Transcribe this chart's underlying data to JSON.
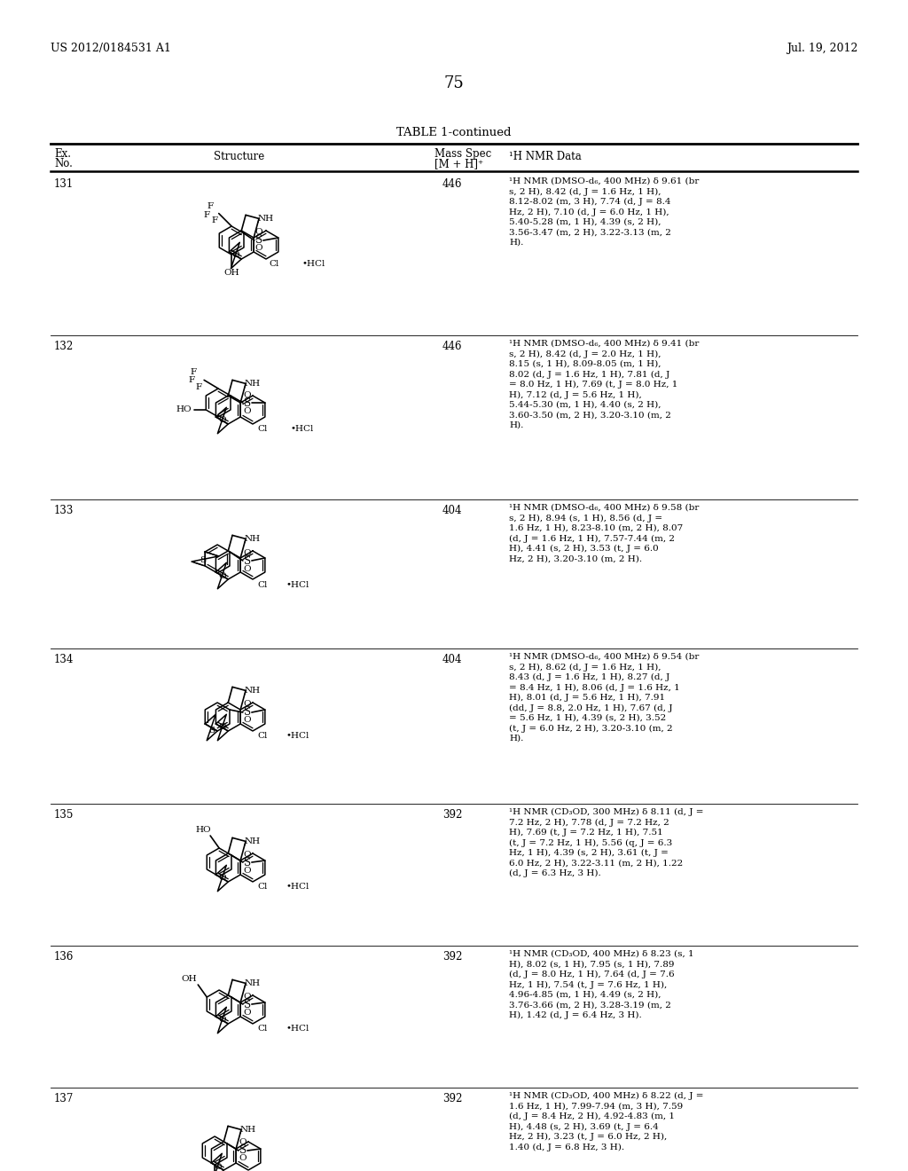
{
  "page_number": "75",
  "header_left": "US 2012/0184531 A1",
  "header_right": "Jul. 19, 2012",
  "table_title": "TABLE 1-continued",
  "background_color": "#ffffff",
  "rows": [
    {
      "ex_no": "131",
      "mass_spec": "446",
      "nmr": "¹H NMR (DMSO-d₆, 400 MHz) δ 9.61 (br s, 2 H), 8.42 (d, J = 1.6 Hz, 1 H), 8.12-8.02 (m, 3 H), 7.74 (d, J = 8.4 Hz, 2 H), 7.10 (d, J = 6.0 Hz, 1 H), 5.40-5.28 (m, 1 H), 4.39 (s, 2 H), 3.56-3.47 (m, 2 H), 3.22-3.13 (m, 2 H)."
    },
    {
      "ex_no": "132",
      "mass_spec": "446",
      "nmr": "¹H NMR (DMSO-d₆, 400 MHz) δ 9.41 (br s, 2 H), 8.42 (d, J = 2.0 Hz, 1 H), 8.15 (s, 1 H), 8.09-8.05 (m, 1 H), 8.02 (d, J = 1.6 Hz, 1 H), 7.81 (d, J = 8.0 Hz, 1 H), 7.69 (t, J = 8.0 Hz, 1 H), 7.12 (d, J = 5.6 Hz, 1 H), 5.44-5.30 (m, 1 H), 4.40 (s, 2 H), 3.60-3.50 (m, 2 H), 3.20-3.10 (m, 2 H)."
    },
    {
      "ex_no": "133",
      "mass_spec": "404",
      "nmr": "¹H NMR (DMSO-d₆, 400 MHz) δ 9.58 (br s, 2 H), 8.94 (s, 1 H), 8.56 (d, J = 1.6 Hz, 1 H), 8.23-8.10 (m, 2 H), 8.07 (d, J = 1.6 Hz, 1 H), 7.57-7.44 (m, 2 H), 4.41 (s, 2 H), 3.53 (t, J = 6.0 Hz, 2 H), 3.20-3.10 (m, 2 H)."
    },
    {
      "ex_no": "134",
      "mass_spec": "404",
      "nmr": "¹H NMR (DMSO-d₆, 400 MHz) δ 9.54 (br s, 2 H), 8.62 (d, J = 1.6 Hz, 1 H), 8.43 (d, J = 1.6 Hz, 1 H), 8.27 (d, J = 8.4 Hz, 1 H), 8.06 (d, J = 1.6 Hz, 1 H), 8.01 (d, J = 5.6 Hz, 1 H), 7.91 (dd, J = 8.8, 2.0 Hz, 1 H), 7.67 (d, J = 5.6 Hz, 1 H), 4.39 (s, 2 H), 3.52 (t, J = 6.0 Hz, 2 H), 3.20-3.10 (m, 2 H)."
    },
    {
      "ex_no": "135",
      "mass_spec": "392",
      "nmr": "¹H NMR (CD₃OD, 300 MHz) δ 8.11 (d, J = 7.2 Hz, 2 H), 7.78 (d, J = 7.2 Hz, 2 H), 7.69 (t, J = 7.2 Hz, 1 H), 7.51 (t, J = 7.2 Hz, 1 H), 5.56 (q, J = 6.3 Hz, 1 H), 4.39 (s, 2 H), 3.61 (t, J = 6.0 Hz, 2 H), 3.22-3.11 (m, 2 H), 1.22 (d, J = 6.3 Hz, 3 H)."
    },
    {
      "ex_no": "136",
      "mass_spec": "392",
      "nmr": "¹H NMR (CD₃OD, 400 MHz) δ 8.23 (s, 1 H), 8.02 (s, 1 H), 7.95 (s, 1 H), 7.89 (d, J = 8.0 Hz, 1 H), 7.64 (d, J = 7.6 Hz, 1 H), 7.54 (t, J = 7.6 Hz, 1 H), 4.96-4.85 (m, 1 H), 4.49 (s, 2 H), 3.76-3.66 (m, 2 H), 3.28-3.19 (m, 2 H), 1.42 (d, J = 6.4 Hz, 3 H)."
    },
    {
      "ex_no": "137",
      "mass_spec": "392",
      "nmr": "¹H NMR (CD₃OD, 400 MHz) δ 8.22 (d, J = 1.6 Hz, 1 H), 7.99-7.94 (m, 3 H), 7.59 (d, J = 8.4 Hz, 2 H), 4.92-4.83 (m, 1 H), 4.48 (s, 2 H), 3.69 (t, J = 6.4 Hz, 2 H), 3.23 (t, J = 6.0 Hz, 2 H), 1.40 (d, J = 6.8 Hz, 3 H)."
    }
  ]
}
